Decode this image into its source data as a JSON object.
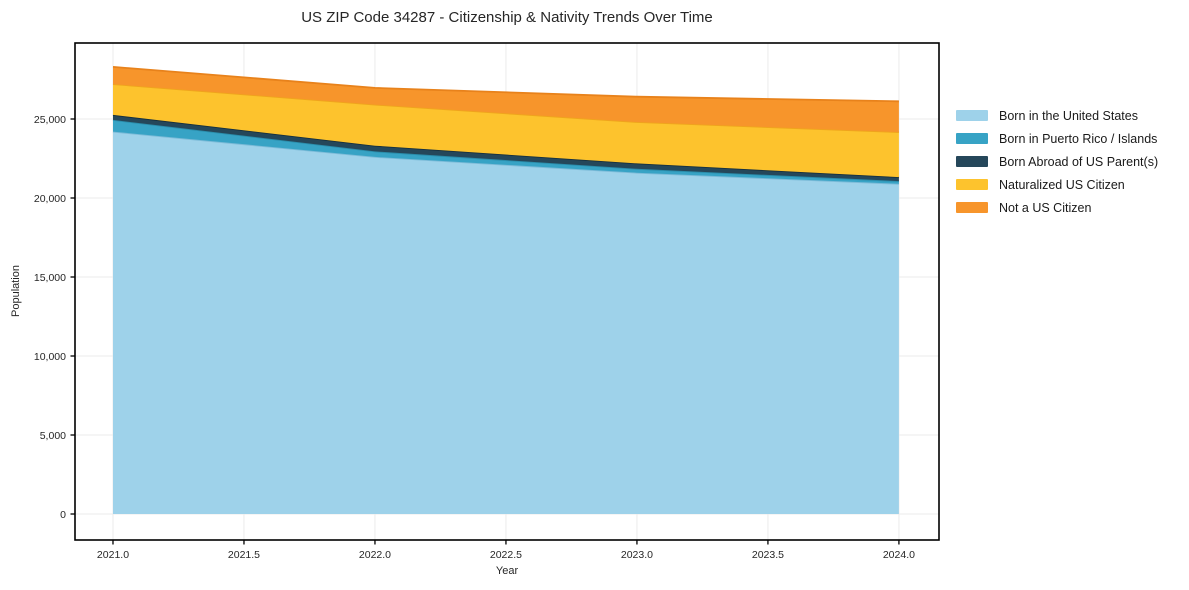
{
  "title": "US ZIP Code 34287 - Citizenship & Nativity Trends Over Time",
  "chart_data": {
    "type": "area",
    "stacked": true,
    "title": "US ZIP Code 34287 - Citizenship & Nativity Trends Over Time",
    "xlabel": "Year",
    "ylabel": "Population",
    "x": [
      2021,
      2022,
      2023,
      2024
    ],
    "xlim": [
      2020.855,
      2024.153
    ],
    "ylim": [
      -1645,
      29810
    ],
    "x_ticks": [
      2021.0,
      2021.5,
      2022.0,
      2022.5,
      2023.0,
      2023.5,
      2024.0
    ],
    "x_tick_labels": [
      "2021.0",
      "2021.5",
      "2022.0",
      "2022.5",
      "2023.0",
      "2023.5",
      "2024.0"
    ],
    "y_ticks": [
      0,
      5000,
      10000,
      15000,
      20000,
      25000
    ],
    "y_tick_labels": [
      "0",
      "5,000",
      "10,000",
      "15,000",
      "20,000",
      "25,000"
    ],
    "grid": true,
    "legend_position": "right-outside",
    "series": [
      {
        "name": "Born in the United States",
        "color": "#9ED2EA",
        "edge_color": "#7CBBD8",
        "values": [
          24200,
          22600,
          21600,
          20900
        ]
      },
      {
        "name": "Born in Puerto Rico / Islands",
        "color": "#37A3C5",
        "edge_color": "#2A8CAA",
        "values": [
          740,
          350,
          250,
          170
        ]
      },
      {
        "name": "Born Abroad of US Parent(s)",
        "color": "#25475A",
        "edge_color": "#16303F",
        "values": [
          320,
          360,
          340,
          250
        ]
      },
      {
        "name": "Naturalized US Citizen",
        "color": "#FDC32D",
        "edge_color": "#EFA51C",
        "values": [
          1950,
          2600,
          2620,
          2850
        ]
      },
      {
        "name": "Not a US Citizen",
        "color": "#F7952B",
        "edge_color": "#E8821B",
        "values": [
          1090,
          1060,
          1600,
          1950
        ]
      }
    ]
  },
  "colors": {
    "background": "#ffffff",
    "frame": "#000000",
    "grid": "#ebebeb",
    "text": "#262626"
  }
}
